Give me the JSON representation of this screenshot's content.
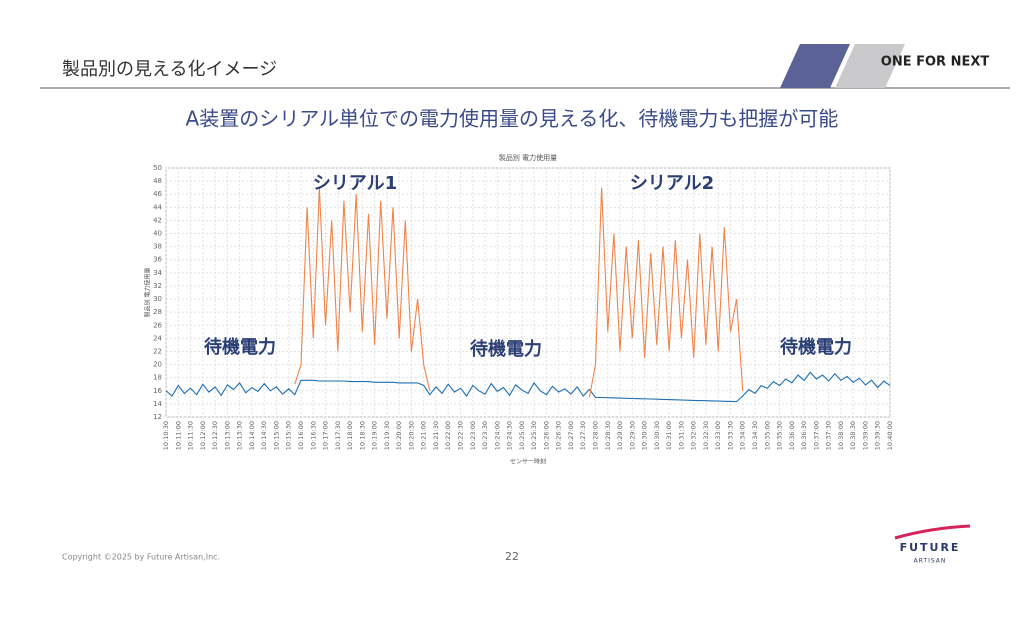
{
  "header": {
    "title": "製品別の見える化イメージ",
    "brand": "ONE FOR NEXT"
  },
  "headline": "A装置のシリアル単位での電力使用量の見える化、待機電力も把握が可能",
  "footer": {
    "copyright": "Copyright ©2025 by Future Artisan,Inc.",
    "page": "22",
    "logo_top": "FUTURE",
    "logo_bottom": "ARTISAN"
  },
  "chart_data": {
    "type": "line",
    "title": "製品別 電力使用量",
    "x_label": "センサー時刻",
    "y_label": "製品別 電力使用量",
    "annotations": [
      "シリアル1",
      "シリアル2",
      "待機電力",
      "待機電力",
      "待機電力"
    ],
    "grid": true,
    "ylim": [
      12,
      50
    ],
    "yticks": [
      12,
      14,
      16,
      18,
      20,
      22,
      24,
      26,
      28,
      30,
      32,
      34,
      36,
      38,
      40,
      42,
      44,
      46,
      48,
      50
    ],
    "categories": [
      "10:10:30",
      null,
      "10:11:00",
      null,
      "10:11:30",
      null,
      "10:12:00",
      null,
      "10:12:30",
      null,
      "10:13:00",
      null,
      "10:13:30",
      null,
      "10:14:00",
      null,
      "10:14:30",
      null,
      "10:15:00",
      null,
      "10:15:30",
      null,
      "10:16:00",
      null,
      "10:16:30",
      null,
      "10:17:00",
      null,
      "10:17:30",
      null,
      "10:18:00",
      null,
      "10:18:30",
      null,
      "10:19:00",
      null,
      "10:19:30",
      null,
      "10:20:00",
      null,
      "10:20:30",
      null,
      "10:21:00",
      null,
      "10:21:30",
      null,
      "10:22:00",
      null,
      "10:22:30",
      null,
      "10:23:00",
      null,
      "10:23:30",
      null,
      "10:24:00",
      null,
      "10:24:30",
      null,
      "10:25:00",
      null,
      "10:25:30",
      null,
      "10:26:00",
      null,
      "10:26:30",
      null,
      "10:27:00",
      null,
      "10:27:30",
      null,
      "10:28:00",
      null,
      "10:28:30",
      null,
      "10:29:00",
      null,
      "10:29:30",
      null,
      "10:30:00",
      null,
      "10:30:30",
      null,
      "10:31:00",
      null,
      "10:31:30",
      null,
      "10:32:00",
      null,
      "10:32:30",
      null,
      "10:33:00",
      null,
      "10:33:30",
      null,
      "10:34:00",
      null,
      "10:34:30",
      null,
      "10:35:00",
      null,
      "10:35:30",
      null,
      "10:36:00",
      null,
      "10:36:30",
      null,
      "10:37:00",
      null,
      "10:37:30",
      null,
      "10:38:00",
      null,
      "10:38:30",
      null,
      "10:39:00",
      null,
      "10:39:30",
      null,
      "10:40:00"
    ],
    "series": [
      {
        "color": "#1f6fb4",
        "values": [
          16,
          15.2,
          16.8,
          15.6,
          16.4,
          15.4,
          17,
          15.8,
          16.6,
          15.3,
          16.9,
          16.2,
          17.2,
          15.7,
          16.5,
          15.9,
          17.1,
          16,
          16.6,
          15.5,
          16.3,
          15.4,
          17.6,
          17.6,
          17.6,
          17.5,
          17.5,
          17.5,
          17.5,
          17.5,
          17.4,
          17.4,
          17.4,
          17.4,
          17.3,
          17.3,
          17.3,
          17.3,
          17.2,
          17.2,
          17.2,
          17.2,
          16.8,
          15.4,
          16.6,
          15.6,
          17,
          15.8,
          16.4,
          15.2,
          16.8,
          16,
          15.5,
          17.1,
          15.9,
          16.5,
          15.3,
          16.9,
          16.1,
          15.6,
          17.2,
          16,
          15.4,
          16.7,
          15.8,
          16.3,
          15.5,
          16.6,
          15.2,
          16.2,
          15,
          14.97,
          14.94,
          14.91,
          14.88,
          14.86,
          14.83,
          14.8,
          14.77,
          14.74,
          14.71,
          14.68,
          14.66,
          14.63,
          14.6,
          14.57,
          14.54,
          14.51,
          14.48,
          14.46,
          14.43,
          14.4,
          14.38,
          14.35,
          15.2,
          16.2,
          15.6,
          16.8,
          16.4,
          17.4,
          16.8,
          17.8,
          17.2,
          18.4,
          17.6,
          18.8,
          17.8,
          18.4,
          17.5,
          18.6,
          17.6,
          18.2,
          17.3,
          17.9,
          16.9,
          17.6,
          16.5,
          17.5,
          16.8
        ]
      },
      {
        "color": "#f0834a",
        "values": [
          null,
          null,
          null,
          null,
          null,
          null,
          null,
          null,
          null,
          null,
          null,
          null,
          null,
          null,
          null,
          null,
          null,
          null,
          null,
          null,
          null,
          17,
          20,
          44,
          24,
          47,
          26,
          42,
          22,
          45,
          28,
          46,
          25,
          43,
          23,
          45,
          27,
          44,
          24,
          42,
          22,
          30,
          20,
          16,
          null,
          null,
          null,
          null,
          null,
          null,
          null,
          null,
          null,
          null,
          null,
          null,
          null,
          null,
          null,
          null,
          null,
          null,
          null,
          null,
          null,
          null,
          null,
          null,
          null,
          15,
          20,
          47,
          25,
          40,
          22,
          38,
          24,
          39,
          21,
          37,
          23,
          38,
          22,
          39,
          24,
          36,
          21,
          40,
          23,
          38,
          22,
          41,
          25,
          30,
          16,
          null,
          null,
          null,
          null,
          null,
          null,
          null,
          null,
          null,
          null,
          null,
          null,
          null,
          null,
          null,
          null,
          null,
          null,
          null,
          null,
          null,
          null,
          null,
          null
        ]
      }
    ]
  }
}
